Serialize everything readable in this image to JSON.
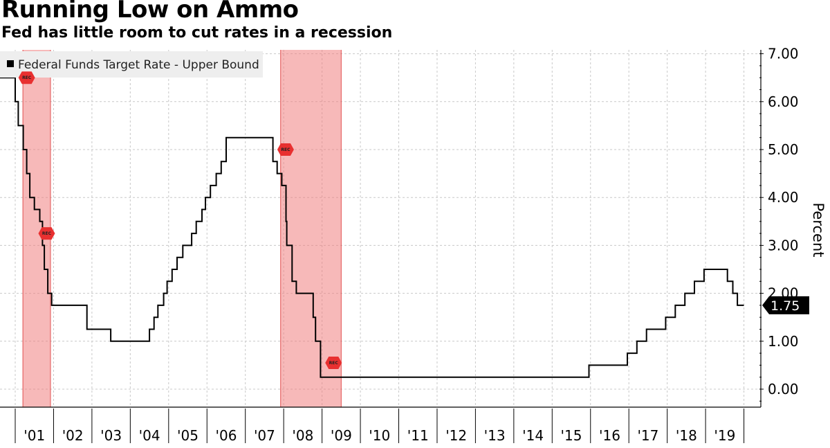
{
  "header": {
    "title": "Running Low on Ammo",
    "subtitle": "Fed has little room to cut rates in a recession"
  },
  "chart_data": {
    "type": "line",
    "step": true,
    "title": "Running Low on Ammo",
    "subtitle": "Fed has little room to cut rates in a recession",
    "ylabel": "Percent",
    "xlabel": "",
    "ylim": [
      -0.4,
      7.2
    ],
    "xlim": [
      2000.0,
      2019.9
    ],
    "y_ticks": [
      0,
      1,
      2,
      3,
      4,
      5,
      6,
      7
    ],
    "y_tick_labels": [
      "0.00",
      "1.00",
      "2.00",
      "3.00",
      "4.00",
      "5.00",
      "6.00",
      "7.00"
    ],
    "x_tick_labels": [
      "'01",
      "'02",
      "'03",
      "'04",
      "'05",
      "'06",
      "'07",
      "'08",
      "'09",
      "'10",
      "'11",
      "'12",
      "'13",
      "'14",
      "'15",
      "'16",
      "'17",
      "'18",
      "'19"
    ],
    "grid": true,
    "legend": {
      "placement": "top-left",
      "entries": [
        "Federal Funds Target Rate - Upper Bound"
      ]
    },
    "series": [
      {
        "name": "Federal Funds Target Rate - Upper Bound",
        "color": "#000000",
        "points": [
          [
            2000.0,
            6.5
          ],
          [
            2001.0,
            6.0
          ],
          [
            2001.08,
            5.5
          ],
          [
            2001.21,
            5.0
          ],
          [
            2001.3,
            4.5
          ],
          [
            2001.38,
            4.0
          ],
          [
            2001.5,
            3.75
          ],
          [
            2001.64,
            3.5
          ],
          [
            2001.71,
            3.0
          ],
          [
            2001.76,
            2.5
          ],
          [
            2001.85,
            2.0
          ],
          [
            2001.95,
            1.75
          ],
          [
            2002.87,
            1.25
          ],
          [
            2003.49,
            1.0
          ],
          [
            2004.5,
            1.25
          ],
          [
            2004.62,
            1.5
          ],
          [
            2004.72,
            1.75
          ],
          [
            2004.87,
            2.0
          ],
          [
            2004.96,
            2.25
          ],
          [
            2005.09,
            2.5
          ],
          [
            2005.22,
            2.75
          ],
          [
            2005.37,
            3.0
          ],
          [
            2005.6,
            3.25
          ],
          [
            2005.72,
            3.5
          ],
          [
            2005.87,
            3.75
          ],
          [
            2005.96,
            4.0
          ],
          [
            2006.09,
            4.25
          ],
          [
            2006.24,
            4.5
          ],
          [
            2006.37,
            4.75
          ],
          [
            2006.5,
            5.25
          ],
          [
            2007.72,
            4.75
          ],
          [
            2007.83,
            4.5
          ],
          [
            2007.95,
            4.25
          ],
          [
            2008.06,
            3.5
          ],
          [
            2008.08,
            3.0
          ],
          [
            2008.22,
            2.25
          ],
          [
            2008.33,
            2.0
          ],
          [
            2008.77,
            1.5
          ],
          [
            2008.83,
            1.0
          ],
          [
            2008.96,
            0.25
          ],
          [
            2015.96,
            0.5
          ],
          [
            2016.96,
            0.75
          ],
          [
            2017.21,
            1.0
          ],
          [
            2017.46,
            1.25
          ],
          [
            2017.96,
            1.5
          ],
          [
            2018.21,
            1.75
          ],
          [
            2018.46,
            2.0
          ],
          [
            2018.71,
            2.25
          ],
          [
            2018.96,
            2.5
          ],
          [
            2019.57,
            2.25
          ],
          [
            2019.71,
            2.0
          ],
          [
            2019.83,
            1.75
          ],
          [
            2020.0,
            1.75
          ]
        ]
      }
    ],
    "recessions": [
      {
        "start": 2001.2,
        "end": 2001.92,
        "label": "REC",
        "marker_value": 3.25
      },
      {
        "start": 2007.92,
        "end": 2009.5,
        "label": "REC",
        "marker_value": 5.0
      }
    ],
    "recession_markers_extra": [
      {
        "x": 2009.3,
        "value": 0.55,
        "label": "REC"
      },
      {
        "x": 2001.3,
        "value": 6.5,
        "label": "REC"
      }
    ],
    "last_value_label": "1.75",
    "colors": {
      "recession_fill": "#f08080",
      "recession_marker": "#e83030",
      "grid": "#c8c8c8",
      "line": "#000000",
      "legend_bg": "#eeeeee"
    }
  }
}
